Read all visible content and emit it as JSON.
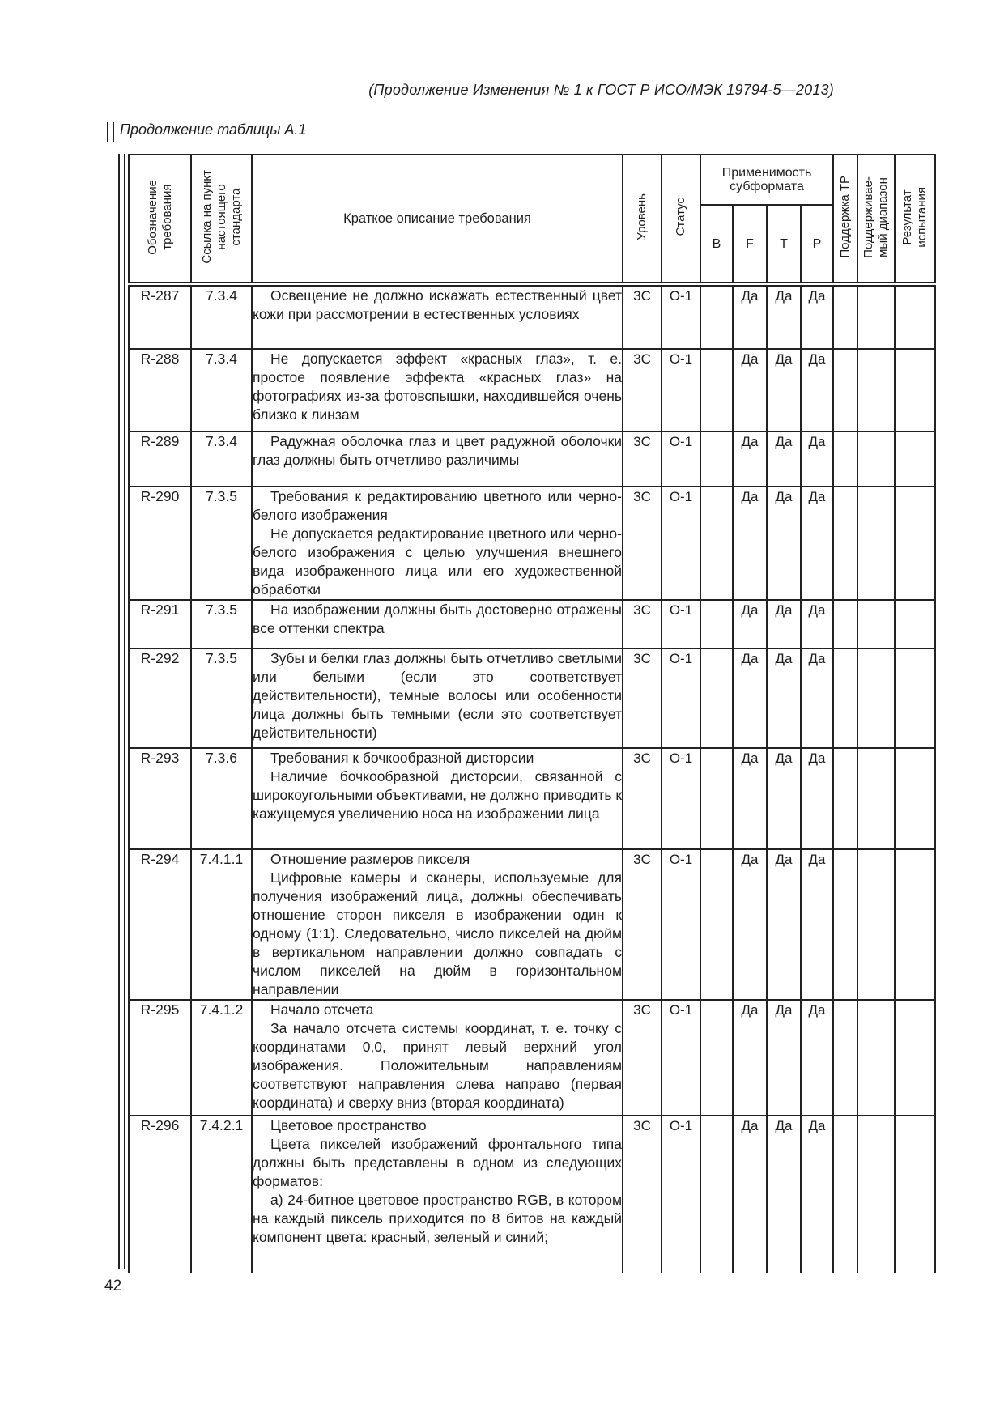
{
  "page": {
    "header": "(Продолжение Изменения № 1 к ГОСТ Р ИСО/МЭК 19794-5—2013)",
    "table_caption": "Продолжение таблицы А.1",
    "page_number": "42"
  },
  "table": {
    "headers": {
      "col_designation": "Обозначение\nтребования",
      "col_reference": "Ссылка на пункт\nнастоящего\nстандарта",
      "col_description": "Краткое описание требования",
      "col_level": "Уровень",
      "col_status": "Статус",
      "col_applicability": "Применимость\nсубформата",
      "sub_b": "B",
      "sub_f": "F",
      "sub_t": "T",
      "sub_p": "P",
      "col_tr_support": "Поддержка ТР",
      "col_supported_range": "Поддерживае-\nмый диапазон",
      "col_test_result": "Результат\nиспытания"
    },
    "rows": [
      {
        "id": "R-287",
        "ref": "7.3.4",
        "paragraphs": [
          "Освещение не должно искажать естественный цвет кожи при рассмотрении в естественных условиях"
        ],
        "level": "3С",
        "status": "О-1",
        "b": "",
        "f": "Да",
        "t": "Да",
        "p": "Да",
        "tr_support": "",
        "range": "",
        "result": ""
      },
      {
        "id": "R-288",
        "ref": "7.3.4",
        "paragraphs": [
          "Не допускается эффект «красных глаз», т. е. простое появление эффекта «красных глаз» на фотографиях из-за фотовспышки, находившейся очень близко к линзам"
        ],
        "level": "3С",
        "status": "О-1",
        "b": "",
        "f": "Да",
        "t": "Да",
        "p": "Да",
        "tr_support": "",
        "range": "",
        "result": ""
      },
      {
        "id": "R-289",
        "ref": "7.3.4",
        "paragraphs": [
          "Радужная оболочка глаз и цвет радужной оболочки глаз должны быть отчетливо различимы"
        ],
        "level": "3С",
        "status": "О-1",
        "b": "",
        "f": "Да",
        "t": "Да",
        "p": "Да",
        "tr_support": "",
        "range": "",
        "result": ""
      },
      {
        "id": "R-290",
        "ref": "7.3.5",
        "paragraphs": [
          "Требования к редактированию цветного или черно-белого изображения",
          "Не допускается редактирование цветного или черно-белого изображения с целью улучшения внешнего вида изображенного лица или его художественной обработки"
        ],
        "level": "3С",
        "status": "О-1",
        "b": "",
        "f": "Да",
        "t": "Да",
        "p": "Да",
        "tr_support": "",
        "range": "",
        "result": ""
      },
      {
        "id": "R-291",
        "ref": "7.3.5",
        "paragraphs": [
          "На изображении должны быть достоверно отражены все оттенки спектра"
        ],
        "level": "3С",
        "status": "О-1",
        "b": "",
        "f": "Да",
        "t": "Да",
        "p": "Да",
        "tr_support": "",
        "range": "",
        "result": ""
      },
      {
        "id": "R-292",
        "ref": "7.3.5",
        "paragraphs": [
          "Зубы и белки глаз должны быть отчетливо светлыми или белыми (если это соответствует действительности), темные волосы или особенности лица должны быть темными (если это соответствует действительности)"
        ],
        "level": "3С",
        "status": "О-1",
        "b": "",
        "f": "Да",
        "t": "Да",
        "p": "Да",
        "tr_support": "",
        "range": "",
        "result": ""
      },
      {
        "id": "R-293",
        "ref": "7.3.6",
        "paragraphs": [
          "Требования к бочкообразной дисторсии",
          "Наличие бочкообразной дисторсии, связанной с широкоугольными объективами, не должно приводить к кажущемуся увеличению носа на изображении лица"
        ],
        "level": "3С",
        "status": "О-1",
        "b": "",
        "f": "Да",
        "t": "Да",
        "p": "Да",
        "tr_support": "",
        "range": "",
        "result": ""
      },
      {
        "id": "R-294",
        "ref": "7.4.1.1",
        "paragraphs": [
          "Отношение размеров пикселя",
          "Цифровые камеры и сканеры, используемые для получения изображений лица, должны обеспечивать отношение сторон пикселя в изображении один к одному (1:1). Следовательно, число пикселей на дюйм в вертикальном направлении должно совпадать с числом пикселей на дюйм в горизонтальном направлении"
        ],
        "level": "3С",
        "status": "О-1",
        "b": "",
        "f": "Да",
        "t": "Да",
        "p": "Да",
        "tr_support": "",
        "range": "",
        "result": ""
      },
      {
        "id": "R-295",
        "ref": "7.4.1.2",
        "paragraphs": [
          "Начало отсчета",
          "За начало отсчета системы координат, т. е. точку с координатами 0,0, принят левый верхний угол изображения. Положительным направлениям соответствуют направления слева направо (первая координата) и сверху вниз (вторая координата)"
        ],
        "level": "3С",
        "status": "О-1",
        "b": "",
        "f": "Да",
        "t": "Да",
        "p": "Да",
        "tr_support": "",
        "range": "",
        "result": ""
      },
      {
        "id": "R-296",
        "ref": "7.4.2.1",
        "paragraphs": [
          "Цветовое пространство",
          "Цвета пикселей изображений фронтального типа должны быть представлены в одном из следующих форматов:",
          "а) 24-битное цветовое пространство RGB, в котором на каждый пиксель приходится по 8 битов на каждый компонент цвета: красный, зеленый и синий;"
        ],
        "level": "3С",
        "status": "О-1",
        "b": "",
        "f": "Да",
        "t": "Да",
        "p": "Да",
        "tr_support": "",
        "range": "",
        "result": ""
      }
    ]
  }
}
